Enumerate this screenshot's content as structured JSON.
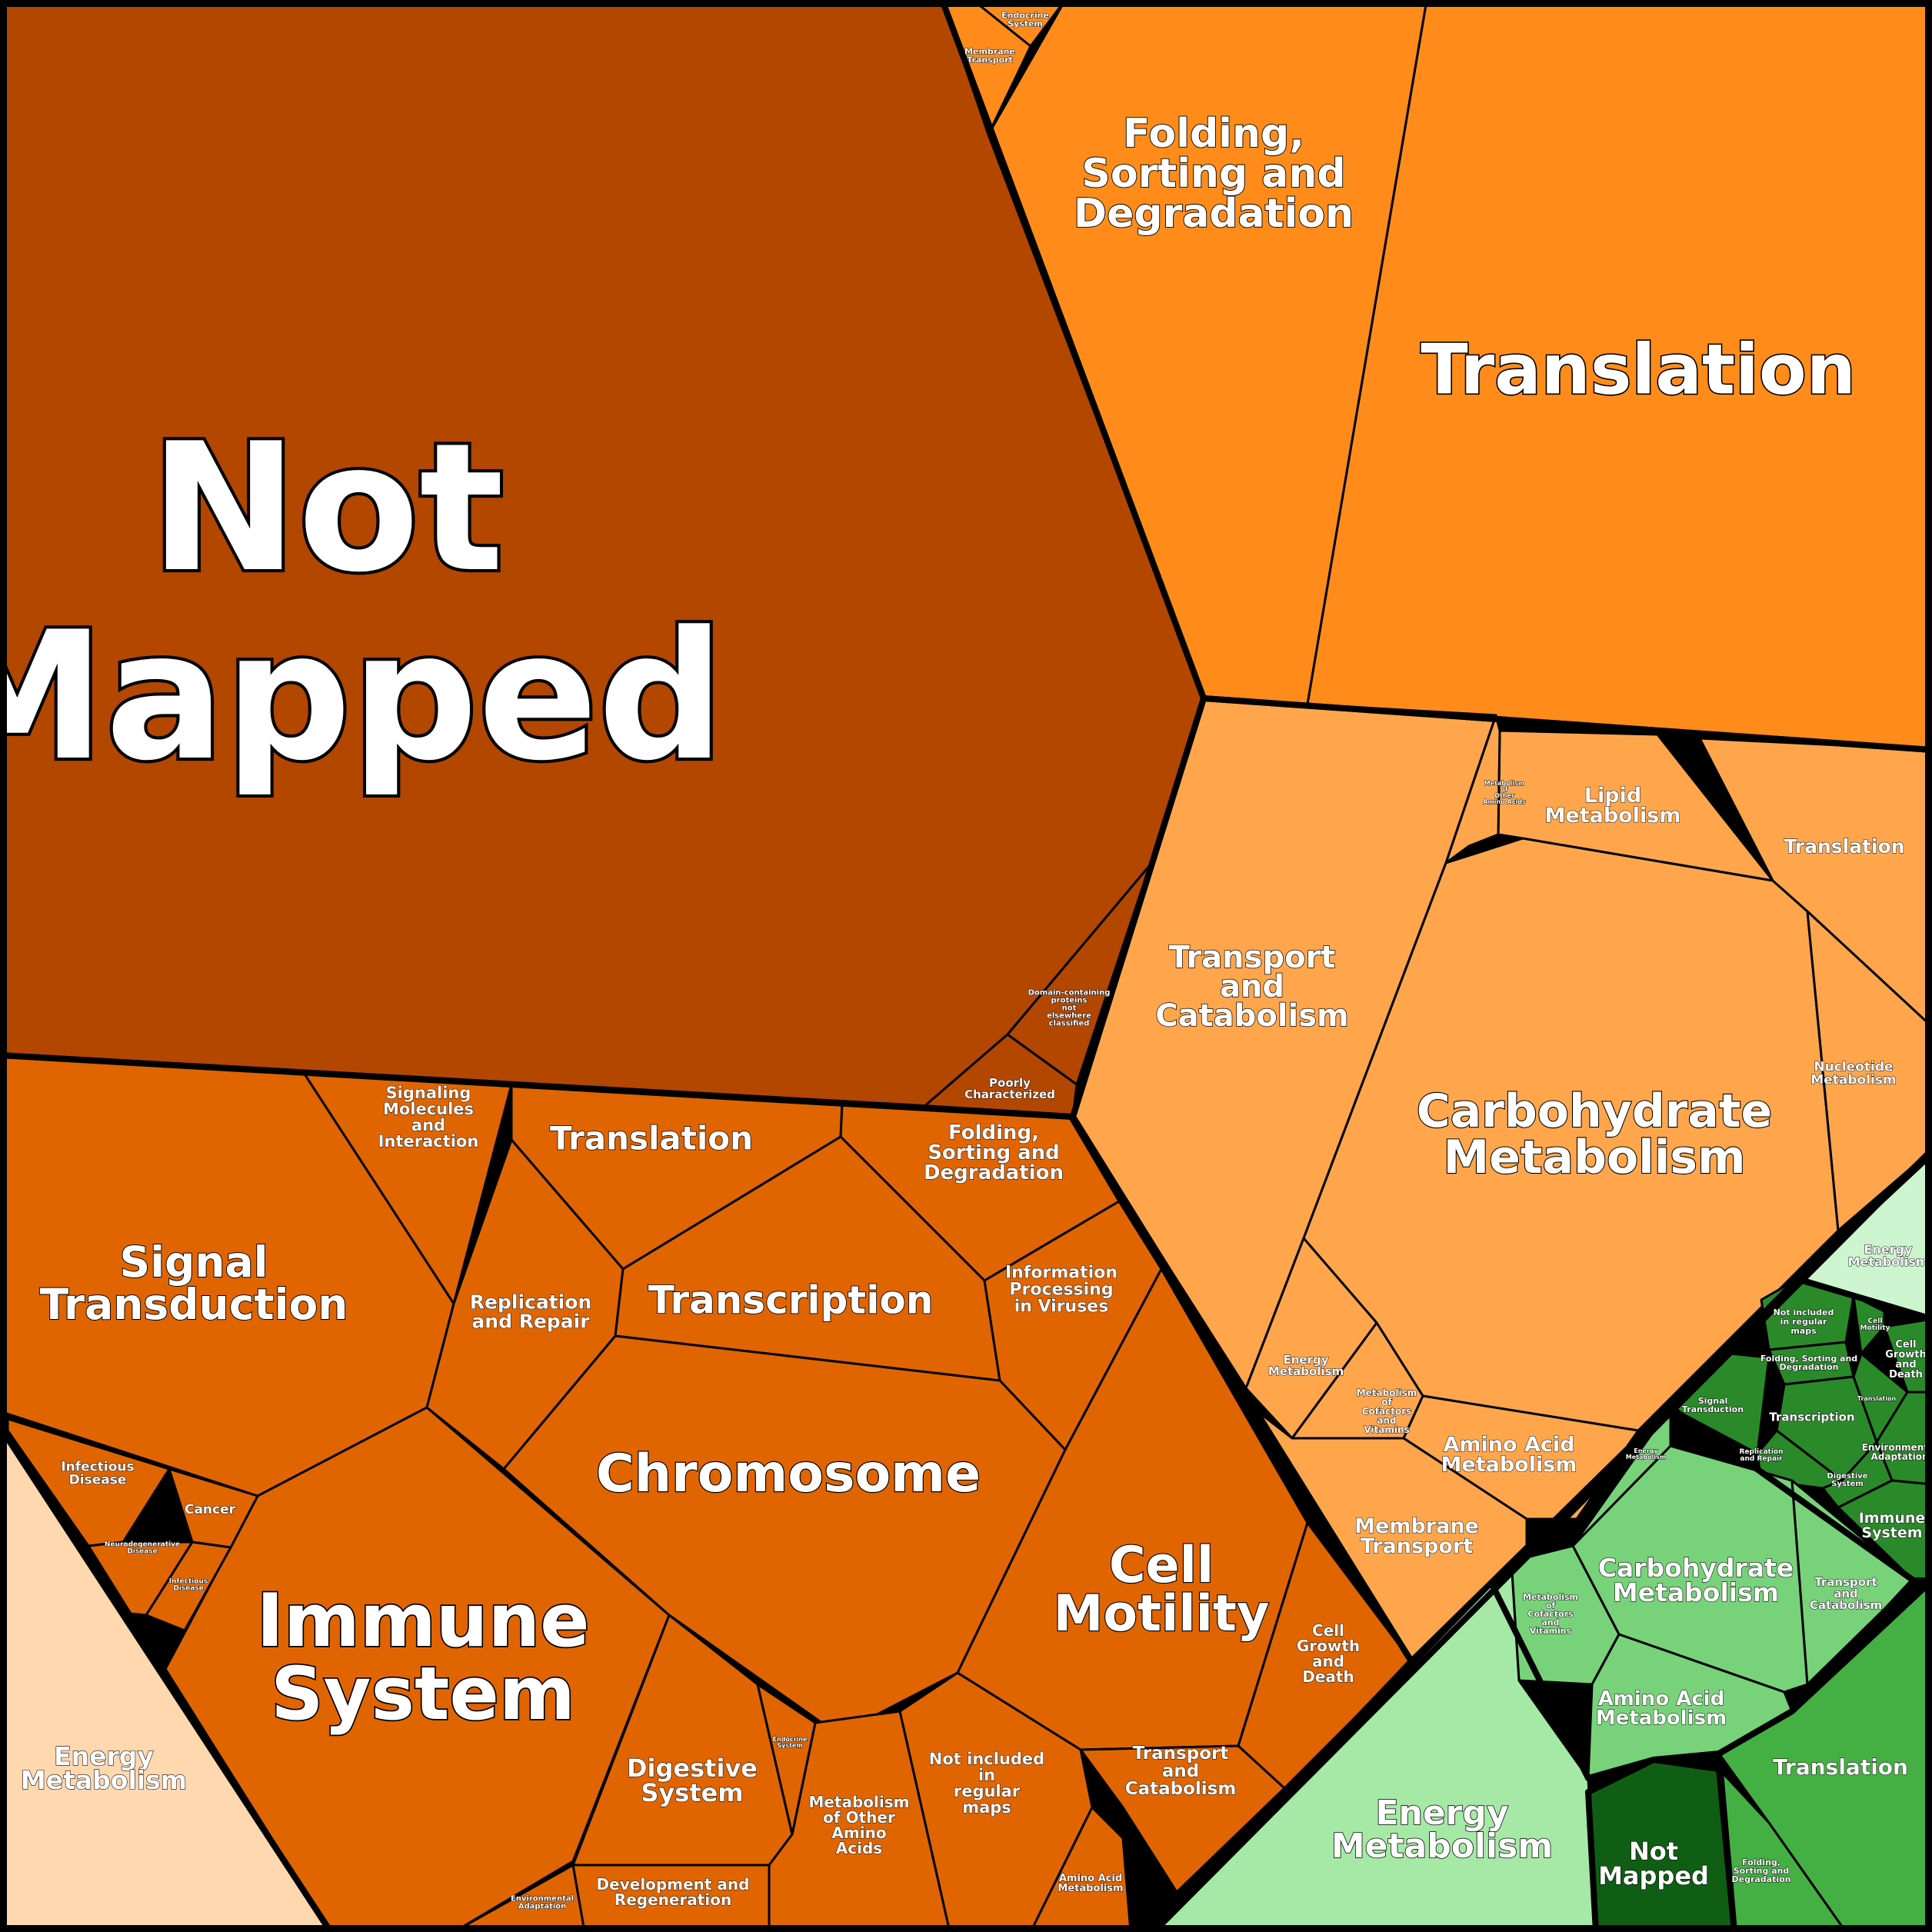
{
  "chart_data": {
    "type": "voronoi-treemap",
    "colors": {
      "dark_brown": "#b34700",
      "orange": "#e06500",
      "bright_orange": "#ff8c1a",
      "light_orange": "#ffa64d",
      "peach": "#ffd8b0",
      "pale_green": "#ccf5cf",
      "light_green": "#a6e8a6",
      "medium_green": "#78d27a",
      "dark_green": "#2a8a2a",
      "green": "#44b044",
      "darkest_green": "#0f5e14"
    },
    "cells": [
      {
        "label": "Not Mapped",
        "color": "#b34700"
      },
      {
        "label": "Poorly Characterized",
        "color": "#b34700"
      },
      {
        "label": "Domain-containing proteins not elsewhere classified",
        "color": "#b34700"
      },
      {
        "label": "Translation",
        "color": "#ff8c1a"
      },
      {
        "label": "Folding, Sorting and Degradation",
        "color": "#ff8c1a"
      },
      {
        "label": "Membrane Transport",
        "color": "#ff8c1a"
      },
      {
        "label": "Endocrine System",
        "color": "#ff8c1a"
      },
      {
        "label": "Signal Transduction",
        "color": "#e06500"
      },
      {
        "label": "Signaling Molecules and Interaction",
        "color": "#e06500"
      },
      {
        "label": "Translation",
        "color": "#e06500"
      },
      {
        "label": "Folding, Sorting and Degradation",
        "color": "#e06500"
      },
      {
        "label": "Replication and Repair",
        "color": "#e06500"
      },
      {
        "label": "Transcription",
        "color": "#e06500"
      },
      {
        "label": "Information Processing in Viruses",
        "color": "#e06500"
      },
      {
        "label": "Chromosome",
        "color": "#e06500"
      },
      {
        "label": "Cell Motility",
        "color": "#e06500"
      },
      {
        "label": "Cell Growth and Death",
        "color": "#e06500"
      },
      {
        "label": "Transport and Catabolism",
        "color": "#e06500"
      },
      {
        "label": "Immune System",
        "color": "#e06500"
      },
      {
        "label": "Digestive System",
        "color": "#e06500"
      },
      {
        "label": "Metabolism of Other Amino Acids",
        "color": "#e06500"
      },
      {
        "label": "Not included in regular maps",
        "color": "#e06500"
      },
      {
        "label": "Development and Regeneration",
        "color": "#e06500"
      },
      {
        "label": "Environmental Adaptation",
        "color": "#e06500"
      },
      {
        "label": "Amino Acid Metabolism",
        "color": "#e06500"
      },
      {
        "label": "Endocrine System",
        "color": "#e06500"
      },
      {
        "label": "Infectious Disease",
        "color": "#e06500"
      },
      {
        "label": "Cancer",
        "color": "#e06500"
      },
      {
        "label": "Neurodegenerative Disease",
        "color": "#e06500"
      },
      {
        "label": "Infectious Disease",
        "color": "#e06500"
      },
      {
        "label": "Energy Metabolism",
        "color": "#ffd8b0"
      },
      {
        "label": "Transport and Catabolism",
        "color": "#ffa64d"
      },
      {
        "label": "Carbohydrate Metabolism",
        "color": "#ffa64d"
      },
      {
        "label": "Lipid Metabolism",
        "color": "#ffa64d"
      },
      {
        "label": "Translation",
        "color": "#ffa64d"
      },
      {
        "label": "Nucleotide Metabolism",
        "color": "#ffa64d"
      },
      {
        "label": "Metabolism of Other Amino Acids",
        "color": "#ffa64d"
      },
      {
        "label": "Energy Metabolism",
        "color": "#ffa64d"
      },
      {
        "label": "Metabolism of Cofactors and Vitamins",
        "color": "#ffa64d"
      },
      {
        "label": "Amino Acid Metabolism",
        "color": "#ffa64d"
      },
      {
        "label": "Membrane Transport",
        "color": "#ffa64d"
      },
      {
        "label": "Energy Metabolism",
        "color": "#ccf5cf"
      },
      {
        "label": "Not included in regular maps",
        "color": "#2a8a2a"
      },
      {
        "label": "Folding, Sorting and Degradation",
        "color": "#2a8a2a"
      },
      {
        "label": "Signal Transduction",
        "color": "#2a8a2a"
      },
      {
        "label": "Transcription",
        "color": "#2a8a2a"
      },
      {
        "label": "Replication and Repair",
        "color": "#2a8a2a"
      },
      {
        "label": "Cell Growth and Death",
        "color": "#2a8a2a"
      },
      {
        "label": "Cell Motility",
        "color": "#2a8a2a"
      },
      {
        "label": "Translation",
        "color": "#2a8a2a"
      },
      {
        "label": "Environmental Adaptation",
        "color": "#2a8a2a"
      },
      {
        "label": "Digestive System",
        "color": "#2a8a2a"
      },
      {
        "label": "Immune System",
        "color": "#2a8a2a"
      },
      {
        "label": "Carbohydrate Metabolism",
        "color": "#78d27a"
      },
      {
        "label": "Transport and Catabolism",
        "color": "#78d27a"
      },
      {
        "label": "Metabolism of Cofactors and Vitamins",
        "color": "#78d27a"
      },
      {
        "label": "Amino Acid Metabolism",
        "color": "#78d27a"
      },
      {
        "label": "Energy Metabolism",
        "color": "#78d27a"
      },
      {
        "label": "Energy Metabolism",
        "color": "#a6e8a6"
      },
      {
        "label": "Not Mapped",
        "color": "#0f5e14"
      },
      {
        "label": "Translation",
        "color": "#44b044"
      },
      {
        "label": "Folding, Sorting and Degradation",
        "color": "#44b044"
      }
    ]
  }
}
